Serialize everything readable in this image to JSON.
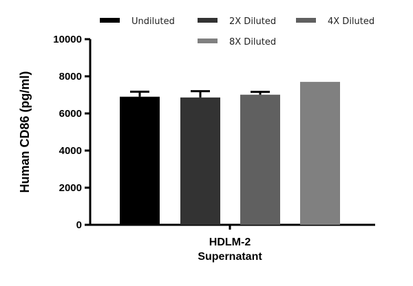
{
  "chart_data": {
    "type": "bar",
    "title": "",
    "ylabel": "Human CD86 (pg/ml)",
    "xlabel": "",
    "categories": [
      "HDLM-2 Supernatant"
    ],
    "category_lines": [
      "HDLM-2",
      "Supernatant"
    ],
    "ylim": [
      0,
      10000
    ],
    "yticks": [
      0,
      2000,
      4000,
      6000,
      8000,
      10000
    ],
    "grid": false,
    "legend_position": "top",
    "series": [
      {
        "name": "Undiluted",
        "values": [
          6900
        ],
        "error": [
          270
        ],
        "color": "#000000"
      },
      {
        "name": "2X Diluted",
        "values": [
          6860
        ],
        "error": [
          340
        ],
        "color": "#333333"
      },
      {
        "name": "4X Diluted",
        "values": [
          7010
        ],
        "error": [
          150
        ],
        "color": "#606060"
      },
      {
        "name": "8X Diluted",
        "values": [
          7700
        ],
        "error": [
          0
        ],
        "color": "#808080"
      }
    ]
  }
}
